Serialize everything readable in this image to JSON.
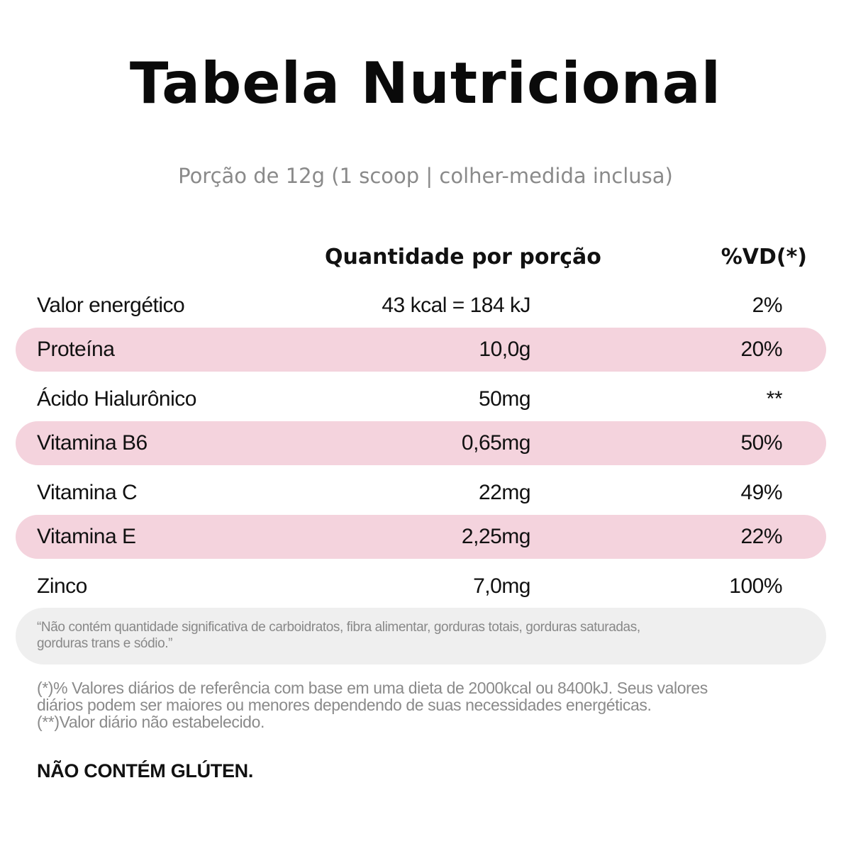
{
  "title": "Tabela Nutricional",
  "subtitle": "Porção de 12g (1 scoop | colher-medida inclusa)",
  "headers": {
    "quantity": "Quantidade por porção",
    "daily_value": "%VD(*)"
  },
  "rows": [
    {
      "name": "Valor energético",
      "amount": "43 kcal = 184 kJ",
      "vd": "2%"
    },
    {
      "name": "Proteína",
      "amount": "10,0g",
      "vd": "20%"
    },
    {
      "name": "Ácido Hialurônico",
      "amount": "50mg",
      "vd": "**"
    },
    {
      "name": "Vitamina B6",
      "amount": "0,65mg",
      "vd": "50%"
    },
    {
      "name": "Vitamina C",
      "amount": "22mg",
      "vd": "49%"
    },
    {
      "name": "Vitamina E",
      "amount": "2,25mg",
      "vd": "22%"
    },
    {
      "name": "Zinco",
      "amount": "7,0mg",
      "vd": "100%"
    }
  ],
  "note": {
    "line1": "“Não contém quantidade significativa de carboidratos, fibra alimentar, gorduras totais, gorduras saturadas,",
    "line2": "gorduras trans e sódio.”"
  },
  "footnotes": {
    "line1": "(*)% Valores diários de referência com base em uma dieta de 2000kcal ou 8400kJ. Seus valores",
    "line2": "diários podem ser maiores ou menores  dependendo de suas necessidades energéticas.",
    "line3": "(**)Valor diário não estabelecido."
  },
  "gluten_notice": "NÃO CONTÉM GLÚTEN.",
  "colors": {
    "stripe": "#f4d3dd",
    "note_background": "#efefef",
    "muted_text": "#8a8a8a"
  }
}
